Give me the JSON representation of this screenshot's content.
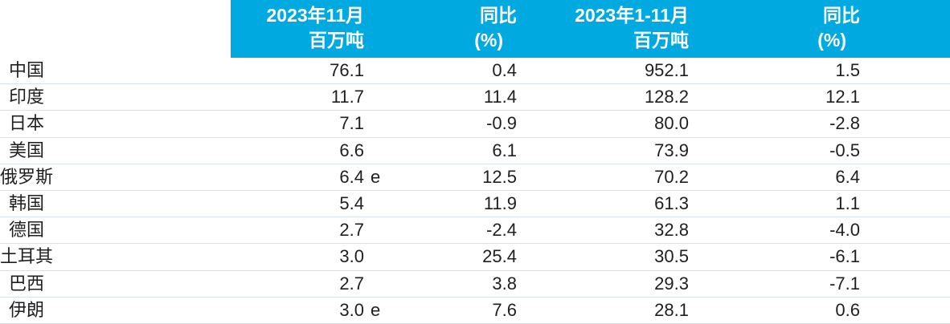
{
  "chart_data": {
    "type": "table",
    "description_note": "",
    "header": {
      "col1": {
        "line1": "2023年11月",
        "line2": "百万吨"
      },
      "col2": {
        "line1": "同比",
        "line2": "(%)"
      },
      "col3": {
        "line1": "2023年1-11月",
        "line2": "百万吨"
      },
      "col4": {
        "line1": "同比",
        "line2": "(%)"
      }
    },
    "rows": [
      {
        "country": "中国",
        "nov": "76.1",
        "nov_flag": "",
        "yoy_nov": "0.4",
        "ytd": "952.1",
        "yoy_ytd": "1.5"
      },
      {
        "country": "印度",
        "nov": "11.7",
        "nov_flag": "",
        "yoy_nov": "11.4",
        "ytd": "128.2",
        "yoy_ytd": "12.1"
      },
      {
        "country": "日本",
        "nov": "7.1",
        "nov_flag": "",
        "yoy_nov": "-0.9",
        "ytd": "80.0",
        "yoy_ytd": "-2.8"
      },
      {
        "country": "美国",
        "nov": "6.6",
        "nov_flag": "",
        "yoy_nov": "6.1",
        "ytd": "73.9",
        "yoy_ytd": "-0.5"
      },
      {
        "country": "俄罗斯",
        "nov": "6.4",
        "nov_flag": "e",
        "yoy_nov": "12.5",
        "ytd": "70.2",
        "yoy_ytd": "6.4"
      },
      {
        "country": "韩国",
        "nov": "5.4",
        "nov_flag": "",
        "yoy_nov": "11.9",
        "ytd": "61.3",
        "yoy_ytd": "1.1"
      },
      {
        "country": "德国",
        "nov": "2.7",
        "nov_flag": "",
        "yoy_nov": "-2.4",
        "ytd": "32.8",
        "yoy_ytd": "-4.0"
      },
      {
        "country": "土耳其",
        "nov": "3.0",
        "nov_flag": "",
        "yoy_nov": "25.4",
        "ytd": "30.5",
        "yoy_ytd": "-6.1"
      },
      {
        "country": "巴西",
        "nov": "2.7",
        "nov_flag": "",
        "yoy_nov": "3.8",
        "ytd": "29.3",
        "yoy_ytd": "-7.1"
      },
      {
        "country": "伊朗",
        "nov": "3.0",
        "nov_flag": "e",
        "yoy_nov": "7.6",
        "ytd": "28.1",
        "yoy_ytd": "0.6"
      }
    ],
    "colors": {
      "header_bg": "#00aae1",
      "header_text": "#ffffff",
      "body_text": "#1f1f1f",
      "row_divider": "#d9e1ea",
      "background": "#ffffff"
    }
  }
}
